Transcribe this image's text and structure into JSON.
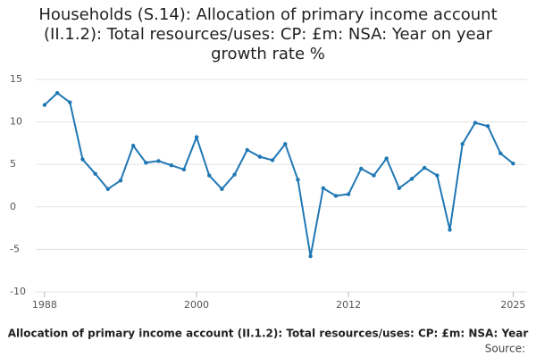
{
  "chart_data": {
    "type": "line",
    "title": "Households (S.14): Allocation of primary income account (II.1.2): Total resources/uses: CP: £m: NSA: Year on year growth rate %",
    "footer": "Allocation of primary income account (II.1.2): Total resources/uses: CP: £m: NSA: Year",
    "source": "Source:",
    "x": [
      1988,
      1989,
      1990,
      1991,
      1992,
      1993,
      1994,
      1995,
      1996,
      1997,
      1998,
      1999,
      2000,
      2001,
      2002,
      2003,
      2004,
      2005,
      2006,
      2007,
      2008,
      2009,
      2010,
      2011,
      2012,
      2013,
      2014,
      2015,
      2016,
      2017,
      2018,
      2019,
      2020,
      2021,
      2022,
      2023,
      2024,
      2025
    ],
    "series": [
      {
        "color": "#1f77b4",
        "values": [
          12.0,
          13.4,
          12.3,
          5.6,
          3.9,
          2.1,
          3.1,
          7.2,
          5.2,
          5.4,
          4.9,
          4.4,
          8.2,
          3.7,
          2.1,
          3.8,
          6.7,
          5.9,
          5.5,
          7.4,
          3.2,
          -5.8,
          2.2,
          1.3,
          1.5,
          4.5,
          3.7,
          5.7,
          2.2,
          3.3,
          4.6,
          3.7,
          -2.7,
          7.4,
          9.9,
          9.5,
          6.3,
          5.1
        ]
      }
    ],
    "xlim": [
      1987.3,
      2026.1
    ],
    "xticks": [
      1988,
      2000,
      2012,
      2025
    ],
    "ylim": [
      -10,
      15
    ],
    "yticks": [
      15,
      10,
      5,
      0,
      -5,
      -10
    ],
    "grid": true
  }
}
